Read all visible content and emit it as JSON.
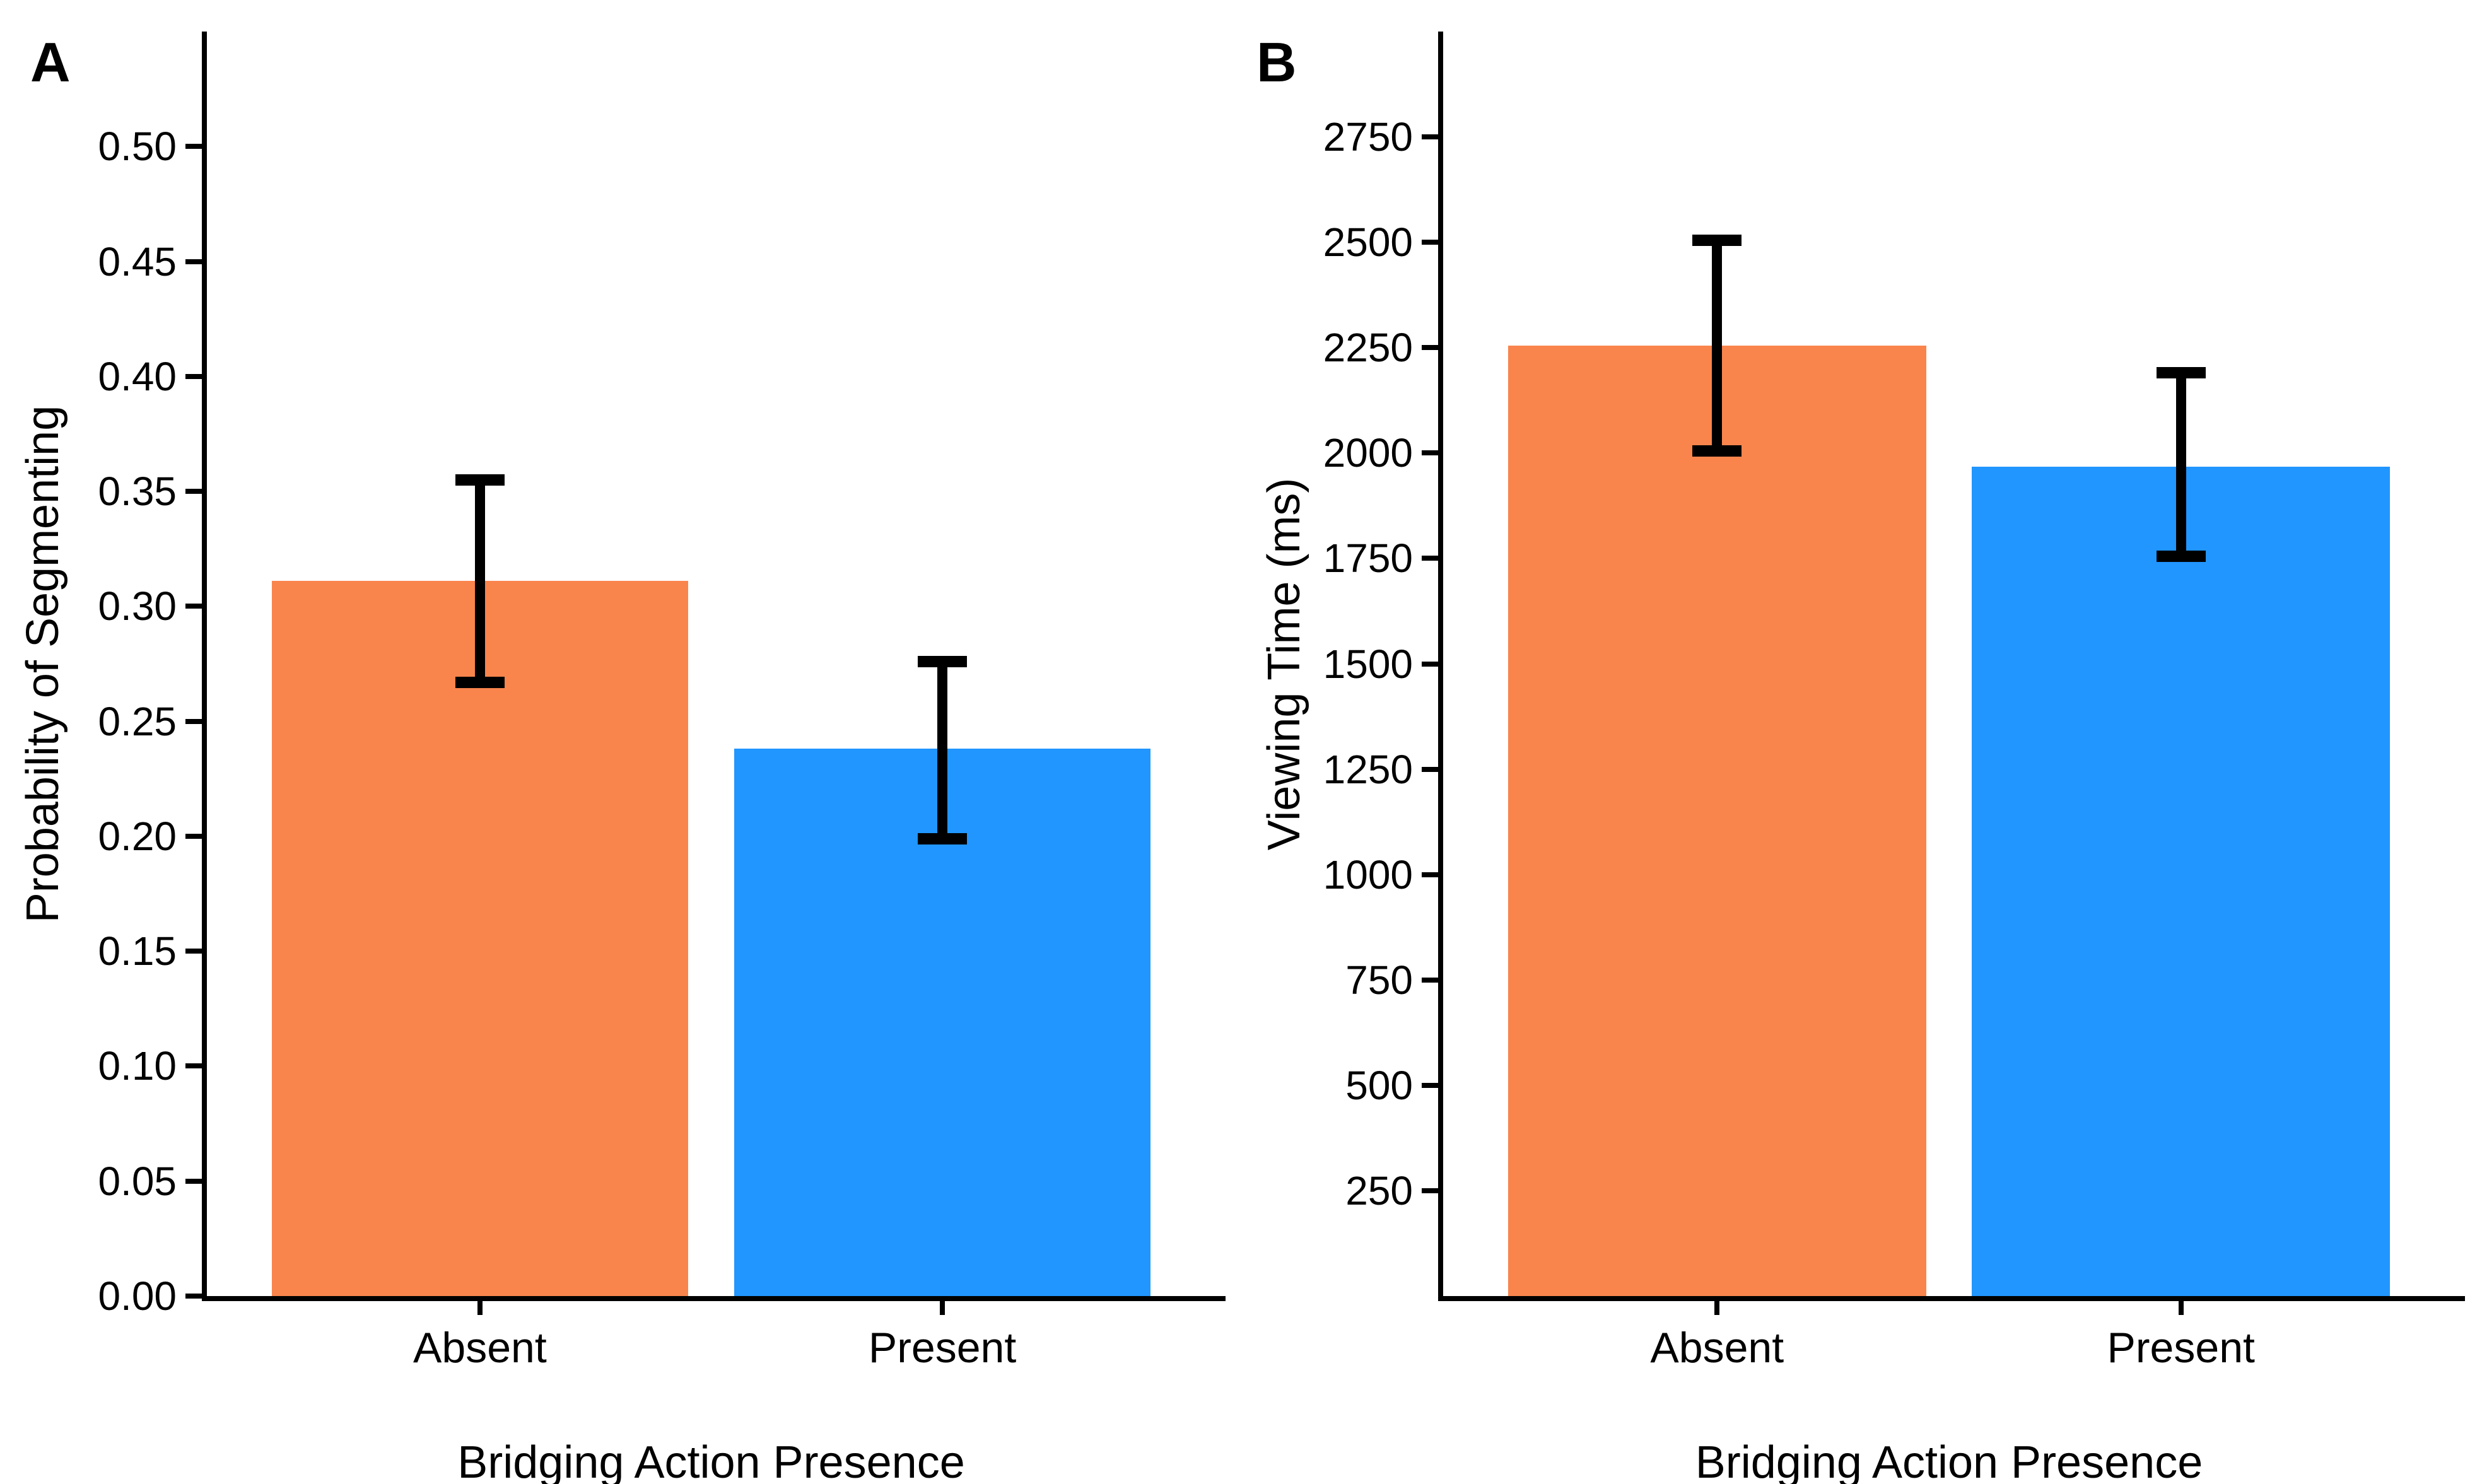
{
  "figure": {
    "background": "#ffffff",
    "text_color": "#000000",
    "axis_color": "#000000",
    "error_bar_color": "#000000"
  },
  "chart_data": [
    {
      "type": "bar",
      "panel_label": "A",
      "title": "",
      "xlabel": "Bridging Action Presence",
      "ylabel": "Probability of Segmenting",
      "categories": [
        "Absent",
        "Present"
      ],
      "values": [
        0.311,
        0.238
      ],
      "error_low": [
        0.267,
        0.199
      ],
      "error_high": [
        0.355,
        0.276
      ],
      "bar_colors": [
        "#F9854D",
        "#2196FF"
      ],
      "ylim": [
        0,
        0.55
      ],
      "grid": false,
      "legend_position": "none",
      "yticks": [
        {
          "v": 0.0,
          "label": "0.00"
        },
        {
          "v": 0.05,
          "label": "0.05"
        },
        {
          "v": 0.1,
          "label": "0.10"
        },
        {
          "v": 0.15,
          "label": "0.15"
        },
        {
          "v": 0.2,
          "label": "0.20"
        },
        {
          "v": 0.25,
          "label": "0.25"
        },
        {
          "v": 0.3,
          "label": "0.30"
        },
        {
          "v": 0.35,
          "label": "0.35"
        },
        {
          "v": 0.4,
          "label": "0.40"
        },
        {
          "v": 0.45,
          "label": "0.45"
        },
        {
          "v": 0.5,
          "label": "0.50"
        }
      ]
    },
    {
      "type": "bar",
      "panel_label": "B",
      "title": "",
      "xlabel": "Bridging Action Presence",
      "ylabel": "Viewing Time (ms)",
      "categories": [
        "Absent",
        "Present"
      ],
      "values": [
        2255,
        1968
      ],
      "error_low": [
        2005,
        1755
      ],
      "error_high": [
        2505,
        2190
      ],
      "bar_colors": [
        "#F9854D",
        "#2196FF"
      ],
      "ylim": [
        0,
        3000
      ],
      "grid": false,
      "legend_position": "none",
      "yticks": [
        {
          "v": 250,
          "label": "250"
        },
        {
          "v": 500,
          "label": "500"
        },
        {
          "v": 750,
          "label": "750"
        },
        {
          "v": 1000,
          "label": "1000"
        },
        {
          "v": 1250,
          "label": "1250"
        },
        {
          "v": 1500,
          "label": "1500"
        },
        {
          "v": 1750,
          "label": "1750"
        },
        {
          "v": 2000,
          "label": "2000"
        },
        {
          "v": 2250,
          "label": "2250"
        },
        {
          "v": 2500,
          "label": "2500"
        },
        {
          "v": 2750,
          "label": "2750"
        }
      ]
    }
  ]
}
